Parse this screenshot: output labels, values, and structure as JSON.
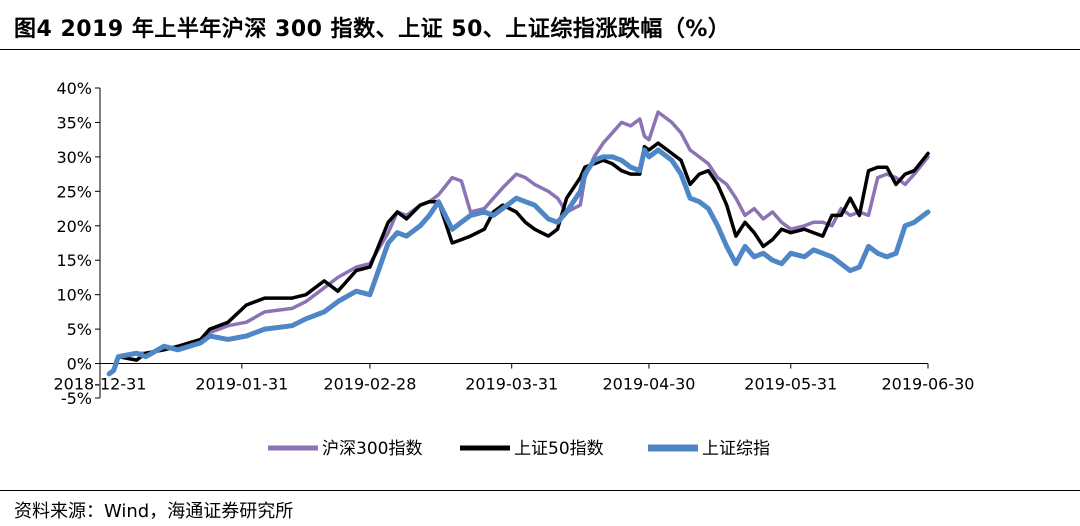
{
  "header": {
    "title": "图4  2019 年上半年沪深 300 指数、上证 50、上证综指涨跌幅（%）"
  },
  "footer": {
    "source": "资料来源：Wind，海通证券研究所"
  },
  "chart_data": {
    "type": "line",
    "title": "2019 年上半年沪深 300 指数、上证 50、上证综指涨跌幅（%）",
    "xlabel": "",
    "ylabel": "",
    "x_range": [
      "2018-12-31",
      "2019-06-30"
    ],
    "ylim": [
      -5,
      40
    ],
    "y_ticks": [
      40,
      35,
      30,
      25,
      20,
      15,
      10,
      5,
      0,
      -5
    ],
    "y_tick_labels": [
      "40%",
      "35%",
      "30%",
      "25%",
      "20%",
      "15%",
      "10%",
      "5%",
      "0%",
      "-5%"
    ],
    "x_ticks": [
      "2018-12-31",
      "2019-01-31",
      "2019-02-28",
      "2019-03-31",
      "2019-04-30",
      "2019-05-31",
      "2019-06-30"
    ],
    "x_tick_labels": [
      "2018-12-31",
      "2019-01-31",
      "2019-02-28",
      "2019-03-31",
      "2019-04-30",
      "2019-05-31",
      "2019-06-30"
    ],
    "grid": false,
    "legend_position": "bottom",
    "series": [
      {
        "name": "沪深300指数",
        "color": "#8B73B5",
        "points": [
          [
            "2019-01-02",
            -1.4
          ],
          [
            "2019-01-03",
            -1.0
          ],
          [
            "2019-01-04",
            1.0
          ],
          [
            "2019-01-08",
            1.5
          ],
          [
            "2019-01-10",
            1.5
          ],
          [
            "2019-01-14",
            2.0
          ],
          [
            "2019-01-17",
            2.5
          ],
          [
            "2019-01-22",
            3.0
          ],
          [
            "2019-01-24",
            4.5
          ],
          [
            "2019-01-28",
            5.5
          ],
          [
            "2019-02-01",
            6.0
          ],
          [
            "2019-02-05",
            7.5
          ],
          [
            "2019-02-11",
            8.0
          ],
          [
            "2019-02-14",
            9.0
          ],
          [
            "2019-02-18",
            11.0
          ],
          [
            "2019-02-21",
            12.5
          ],
          [
            "2019-02-25",
            14.0
          ],
          [
            "2019-02-28",
            14.5
          ],
          [
            "2019-03-04",
            19.0
          ],
          [
            "2019-03-06",
            22.0
          ],
          [
            "2019-03-08",
            21.5
          ],
          [
            "2019-03-11",
            23.0
          ],
          [
            "2019-03-13",
            23.5
          ],
          [
            "2019-03-15",
            24.5
          ],
          [
            "2019-03-18",
            27.0
          ],
          [
            "2019-03-20",
            26.5
          ],
          [
            "2019-03-22",
            22.0
          ],
          [
            "2019-03-25",
            22.5
          ],
          [
            "2019-03-27",
            24.0
          ],
          [
            "2019-03-29",
            25.5
          ],
          [
            "2019-04-01",
            27.5
          ],
          [
            "2019-04-03",
            27.0
          ],
          [
            "2019-04-05",
            26.0
          ],
          [
            "2019-04-08",
            25.0
          ],
          [
            "2019-04-10",
            24.0
          ],
          [
            "2019-04-12",
            22.0
          ],
          [
            "2019-04-15",
            23.0
          ],
          [
            "2019-04-16",
            27.0
          ],
          [
            "2019-04-18",
            30.0
          ],
          [
            "2019-04-20",
            32.0
          ],
          [
            "2019-04-22",
            33.5
          ],
          [
            "2019-04-24",
            35.0
          ],
          [
            "2019-04-26",
            34.5
          ],
          [
            "2019-04-28",
            35.5
          ],
          [
            "2019-04-29",
            33.0
          ],
          [
            "2019-04-30",
            32.5
          ],
          [
            "2019-05-02",
            36.5
          ],
          [
            "2019-05-05",
            35.0
          ],
          [
            "2019-05-07",
            33.5
          ],
          [
            "2019-05-09",
            31.0
          ],
          [
            "2019-05-11",
            30.0
          ],
          [
            "2019-05-13",
            29.0
          ],
          [
            "2019-05-15",
            27.0
          ],
          [
            "2019-05-17",
            26.0
          ],
          [
            "2019-05-19",
            24.0
          ],
          [
            "2019-05-21",
            21.5
          ],
          [
            "2019-05-23",
            22.5
          ],
          [
            "2019-05-25",
            21.0
          ],
          [
            "2019-05-27",
            22.0
          ],
          [
            "2019-05-29",
            20.5
          ],
          [
            "2019-05-31",
            19.5
          ],
          [
            "2019-06-03",
            20.0
          ],
          [
            "2019-06-05",
            20.5
          ],
          [
            "2019-06-07",
            20.5
          ],
          [
            "2019-06-09",
            20.0
          ],
          [
            "2019-06-11",
            22.5
          ],
          [
            "2019-06-13",
            21.5
          ],
          [
            "2019-06-15",
            22.0
          ],
          [
            "2019-06-17",
            21.5
          ],
          [
            "2019-06-19",
            27.0
          ],
          [
            "2019-06-21",
            27.5
          ],
          [
            "2019-06-23",
            27.0
          ],
          [
            "2019-06-25",
            26.0
          ],
          [
            "2019-06-27",
            27.5
          ],
          [
            "2019-06-30",
            30.0
          ]
        ]
      },
      {
        "name": "上证50指数",
        "color": "#000000",
        "points": [
          [
            "2019-01-02",
            -1.5
          ],
          [
            "2019-01-03",
            -1.0
          ],
          [
            "2019-01-04",
            1.0
          ],
          [
            "2019-01-08",
            0.5
          ],
          [
            "2019-01-10",
            1.5
          ],
          [
            "2019-01-14",
            2.0
          ],
          [
            "2019-01-17",
            2.5
          ],
          [
            "2019-01-22",
            3.5
          ],
          [
            "2019-01-24",
            5.0
          ],
          [
            "2019-01-28",
            6.0
          ],
          [
            "2019-02-01",
            8.5
          ],
          [
            "2019-02-05",
            9.5
          ],
          [
            "2019-02-11",
            9.5
          ],
          [
            "2019-02-14",
            10.0
          ],
          [
            "2019-02-18",
            12.0
          ],
          [
            "2019-02-21",
            10.5
          ],
          [
            "2019-02-25",
            13.5
          ],
          [
            "2019-02-28",
            14.0
          ],
          [
            "2019-03-04",
            20.5
          ],
          [
            "2019-03-06",
            22.0
          ],
          [
            "2019-03-08",
            21.0
          ],
          [
            "2019-03-11",
            23.0
          ],
          [
            "2019-03-13",
            23.5
          ],
          [
            "2019-03-15",
            23.5
          ],
          [
            "2019-03-18",
            17.5
          ],
          [
            "2019-03-20",
            18.0
          ],
          [
            "2019-03-22",
            18.5
          ],
          [
            "2019-03-25",
            19.5
          ],
          [
            "2019-03-27",
            22.0
          ],
          [
            "2019-03-29",
            23.0
          ],
          [
            "2019-04-01",
            22.0
          ],
          [
            "2019-04-03",
            20.5
          ],
          [
            "2019-04-05",
            19.5
          ],
          [
            "2019-04-08",
            18.5
          ],
          [
            "2019-04-10",
            19.5
          ],
          [
            "2019-04-12",
            24.0
          ],
          [
            "2019-04-15",
            27.0
          ],
          [
            "2019-04-16",
            28.5
          ],
          [
            "2019-04-18",
            29.0
          ],
          [
            "2019-04-20",
            29.5
          ],
          [
            "2019-04-22",
            29.0
          ],
          [
            "2019-04-24",
            28.0
          ],
          [
            "2019-04-26",
            27.5
          ],
          [
            "2019-04-28",
            27.5
          ],
          [
            "2019-04-29",
            31.5
          ],
          [
            "2019-04-30",
            31.0
          ],
          [
            "2019-05-02",
            32.0
          ],
          [
            "2019-05-05",
            30.5
          ],
          [
            "2019-05-07",
            29.5
          ],
          [
            "2019-05-09",
            26.0
          ],
          [
            "2019-05-11",
            27.5
          ],
          [
            "2019-05-13",
            28.0
          ],
          [
            "2019-05-15",
            26.0
          ],
          [
            "2019-05-17",
            23.0
          ],
          [
            "2019-05-19",
            18.5
          ],
          [
            "2019-05-21",
            20.5
          ],
          [
            "2019-05-23",
            19.0
          ],
          [
            "2019-05-25",
            17.0
          ],
          [
            "2019-05-27",
            18.0
          ],
          [
            "2019-05-29",
            19.5
          ],
          [
            "2019-05-31",
            19.0
          ],
          [
            "2019-06-03",
            19.5
          ],
          [
            "2019-06-05",
            19.0
          ],
          [
            "2019-06-07",
            18.5
          ],
          [
            "2019-06-09",
            21.5
          ],
          [
            "2019-06-11",
            21.5
          ],
          [
            "2019-06-13",
            24.0
          ],
          [
            "2019-06-15",
            21.5
          ],
          [
            "2019-06-17",
            28.0
          ],
          [
            "2019-06-19",
            28.5
          ],
          [
            "2019-06-21",
            28.5
          ],
          [
            "2019-06-23",
            26.0
          ],
          [
            "2019-06-25",
            27.5
          ],
          [
            "2019-06-27",
            28.0
          ],
          [
            "2019-06-30",
            30.5
          ]
        ]
      },
      {
        "name": "上证综指",
        "color": "#4F86C6",
        "points": [
          [
            "2019-01-02",
            -1.5
          ],
          [
            "2019-01-03",
            -1.0
          ],
          [
            "2019-01-04",
            1.0
          ],
          [
            "2019-01-08",
            1.5
          ],
          [
            "2019-01-10",
            1.0
          ],
          [
            "2019-01-14",
            2.5
          ],
          [
            "2019-01-17",
            2.0
          ],
          [
            "2019-01-22",
            3.0
          ],
          [
            "2019-01-24",
            4.0
          ],
          [
            "2019-01-28",
            3.5
          ],
          [
            "2019-02-01",
            4.0
          ],
          [
            "2019-02-05",
            5.0
          ],
          [
            "2019-02-11",
            5.5
          ],
          [
            "2019-02-14",
            6.5
          ],
          [
            "2019-02-18",
            7.5
          ],
          [
            "2019-02-21",
            9.0
          ],
          [
            "2019-02-25",
            10.5
          ],
          [
            "2019-02-28",
            10.0
          ],
          [
            "2019-03-04",
            17.5
          ],
          [
            "2019-03-06",
            19.0
          ],
          [
            "2019-03-08",
            18.5
          ],
          [
            "2019-03-11",
            20.0
          ],
          [
            "2019-03-13",
            21.5
          ],
          [
            "2019-03-15",
            23.5
          ],
          [
            "2019-03-18",
            19.5
          ],
          [
            "2019-03-20",
            20.5
          ],
          [
            "2019-03-22",
            21.5
          ],
          [
            "2019-03-25",
            22.0
          ],
          [
            "2019-03-27",
            21.5
          ],
          [
            "2019-03-29",
            22.5
          ],
          [
            "2019-04-01",
            24.0
          ],
          [
            "2019-04-03",
            23.5
          ],
          [
            "2019-04-05",
            23.0
          ],
          [
            "2019-04-08",
            21.0
          ],
          [
            "2019-04-10",
            20.5
          ],
          [
            "2019-04-12",
            22.0
          ],
          [
            "2019-04-15",
            25.0
          ],
          [
            "2019-04-16",
            27.5
          ],
          [
            "2019-04-18",
            29.5
          ],
          [
            "2019-04-20",
            30.0
          ],
          [
            "2019-04-22",
            30.0
          ],
          [
            "2019-04-24",
            29.5
          ],
          [
            "2019-04-26",
            28.5
          ],
          [
            "2019-04-28",
            28.0
          ],
          [
            "2019-04-29",
            31.0
          ],
          [
            "2019-04-30",
            30.0
          ],
          [
            "2019-05-02",
            31.0
          ],
          [
            "2019-05-05",
            29.5
          ],
          [
            "2019-05-07",
            27.5
          ],
          [
            "2019-05-09",
            24.0
          ],
          [
            "2019-05-11",
            23.5
          ],
          [
            "2019-05-13",
            22.5
          ],
          [
            "2019-05-15",
            20.0
          ],
          [
            "2019-05-17",
            17.0
          ],
          [
            "2019-05-19",
            14.5
          ],
          [
            "2019-05-21",
            17.0
          ],
          [
            "2019-05-23",
            15.5
          ],
          [
            "2019-05-25",
            16.0
          ],
          [
            "2019-05-27",
            15.0
          ],
          [
            "2019-05-29",
            14.5
          ],
          [
            "2019-05-31",
            16.0
          ],
          [
            "2019-06-03",
            15.5
          ],
          [
            "2019-06-05",
            16.5
          ],
          [
            "2019-06-07",
            16.0
          ],
          [
            "2019-06-09",
            15.5
          ],
          [
            "2019-06-11",
            14.5
          ],
          [
            "2019-06-13",
            13.5
          ],
          [
            "2019-06-15",
            14.0
          ],
          [
            "2019-06-17",
            17.0
          ],
          [
            "2019-06-19",
            16.0
          ],
          [
            "2019-06-21",
            15.5
          ],
          [
            "2019-06-23",
            16.0
          ],
          [
            "2019-06-25",
            20.0
          ],
          [
            "2019-06-27",
            20.5
          ],
          [
            "2019-06-30",
            22.0
          ]
        ]
      }
    ]
  }
}
